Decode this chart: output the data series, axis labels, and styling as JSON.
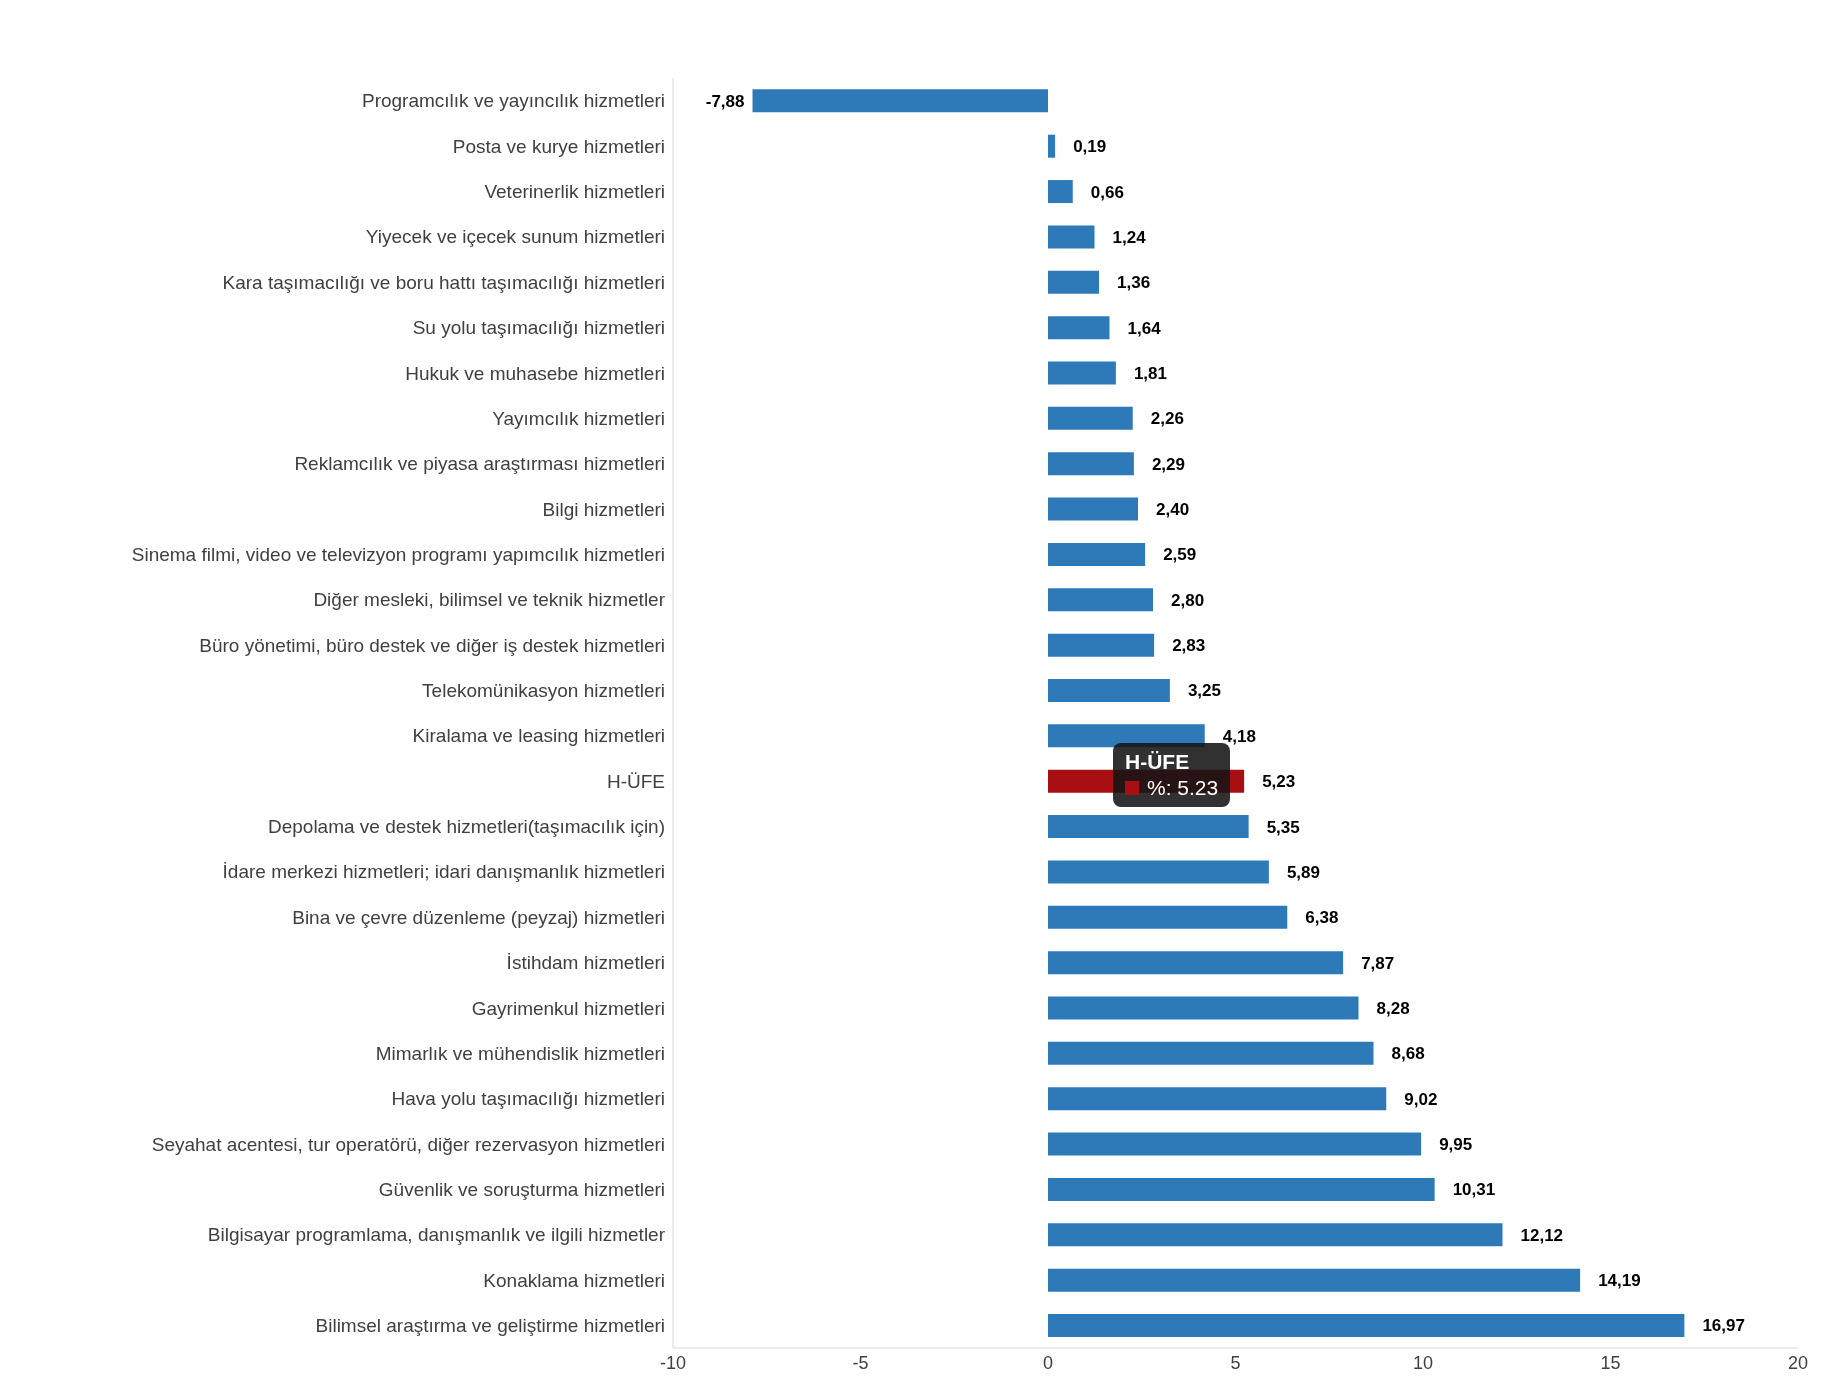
{
  "chart_data": {
    "type": "bar",
    "orientation": "horizontal",
    "categories": [
      "Programcılık ve yayıncılık hizmetleri",
      "Posta ve kurye hizmetleri",
      "Veterinerlik hizmetleri",
      "Yiyecek ve içecek sunum hizmetleri",
      "Kara taşımacılığı ve boru hattı taşımacılığı hizmetleri",
      "Su yolu taşımacılığı hizmetleri",
      "Hukuk ve muhasebe hizmetleri",
      "Yayımcılık hizmetleri",
      "Reklamcılık ve piyasa araştırması hizmetleri",
      "Bilgi hizmetleri",
      "Sinema filmi, video ve televizyon programı yapımcılık hizmetleri",
      "Diğer mesleki, bilimsel ve teknik hizmetler",
      "Büro yönetimi, büro destek ve diğer iş destek hizmetleri",
      "Telekomünikasyon hizmetleri",
      "Kiralama ve leasing hizmetleri",
      "H-ÜFE",
      "Depolama ve destek hizmetleri(taşımacılık için)",
      "İdare merkezi hizmetleri; idari danışmanlık hizmetleri",
      "Bina ve çevre düzenleme (peyzaj) hizmetleri",
      "İstihdam hizmetleri",
      "Gayrimenkul hizmetleri",
      "Mimarlık ve mühendislik hizmetleri",
      "Hava yolu taşımacılığı hizmetleri",
      "Seyahat acentesi, tur operatörü, diğer rezervasyon hizmetleri",
      "Güvenlik ve soruşturma hizmetleri",
      "Bilgisayar programlama, danışmanlık ve ilgili hizmetler",
      "Konaklama hizmetleri",
      "Bilimsel araştırma ve geliştirme hizmetleri"
    ],
    "values": [
      -7.88,
      0.19,
      0.66,
      1.24,
      1.36,
      1.64,
      1.81,
      2.26,
      2.29,
      2.4,
      2.59,
      2.8,
      2.83,
      3.25,
      4.18,
      5.23,
      5.35,
      5.89,
      6.38,
      7.87,
      8.28,
      8.68,
      9.02,
      9.95,
      10.31,
      12.12,
      14.19,
      16.97
    ],
    "value_labels": [
      "-7,88",
      "0,19",
      "0,66",
      "1,24",
      "1,36",
      "1,64",
      "1,81",
      "2,26",
      "2,29",
      "2,40",
      "2,59",
      "2,80",
      "2,83",
      "3,25",
      "4,18",
      "5,23",
      "5,35",
      "5,89",
      "6,38",
      "7,87",
      "8,28",
      "8,68",
      "9,02",
      "9,95",
      "10,31",
      "12,12",
      "14,19",
      "16,97"
    ],
    "colors": [
      "#2e7ab8",
      "#2e7ab8",
      "#2e7ab8",
      "#2e7ab8",
      "#2e7ab8",
      "#2e7ab8",
      "#2e7ab8",
      "#2e7ab8",
      "#2e7ab8",
      "#2e7ab8",
      "#2e7ab8",
      "#2e7ab8",
      "#2e7ab8",
      "#2e7ab8",
      "#2e7ab8",
      "#a80f12",
      "#2e7ab8",
      "#2e7ab8",
      "#2e7ab8",
      "#2e7ab8",
      "#2e7ab8",
      "#2e7ab8",
      "#2e7ab8",
      "#2e7ab8",
      "#2e7ab8",
      "#2e7ab8",
      "#2e7ab8",
      "#2e7ab8"
    ],
    "xlim": [
      -10,
      20
    ],
    "xticks": [
      -10,
      -5,
      0,
      5,
      10,
      15,
      20
    ],
    "grid": false,
    "legend": false,
    "annotations": [
      "H-ÜFE",
      "%: 5.23"
    ]
  }
}
